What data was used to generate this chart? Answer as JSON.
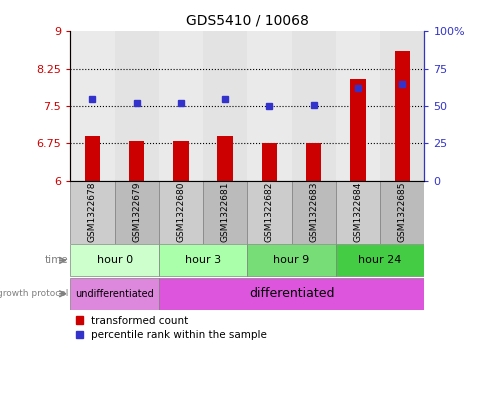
{
  "title": "GDS5410 / 10068",
  "samples": [
    "GSM1322678",
    "GSM1322679",
    "GSM1322680",
    "GSM1322681",
    "GSM1322682",
    "GSM1322683",
    "GSM1322684",
    "GSM1322685"
  ],
  "transformed_count": [
    6.9,
    6.8,
    6.8,
    6.9,
    6.75,
    6.75,
    8.05,
    8.6
  ],
  "percentile_rank": [
    55,
    52,
    52,
    55,
    50,
    51,
    62,
    65
  ],
  "ylim_left": [
    6,
    9
  ],
  "ylim_right": [
    0,
    100
  ],
  "yticks_left": [
    6,
    6.75,
    7.5,
    8.25,
    9
  ],
  "yticks_right": [
    0,
    25,
    50,
    75,
    100
  ],
  "ytick_labels_left": [
    "6",
    "6.75",
    "7.5",
    "8.25",
    "9"
  ],
  "ytick_labels_right": [
    "0",
    "25",
    "50",
    "75",
    "100%"
  ],
  "hlines": [
    6.75,
    7.5,
    8.25
  ],
  "bar_color": "#cc0000",
  "dot_color": "#3333cc",
  "bar_width": 0.35,
  "time_groups": [
    {
      "label": "hour 0",
      "samples": [
        0,
        1
      ],
      "color": "#ccffcc"
    },
    {
      "label": "hour 3",
      "samples": [
        2,
        3
      ],
      "color": "#aaffaa"
    },
    {
      "label": "hour 9",
      "samples": [
        4,
        5
      ],
      "color": "#77dd77"
    },
    {
      "label": "hour 24",
      "samples": [
        6,
        7
      ],
      "color": "#44cc44"
    }
  ],
  "growth_groups": [
    {
      "label": "undifferentiated",
      "samples": [
        0,
        1
      ],
      "color": "#dd88dd"
    },
    {
      "label": "differentiated",
      "samples": [
        2,
        7
      ],
      "color": "#dd55dd"
    }
  ],
  "sample_colors": [
    "#cccccc",
    "#bbbbbb",
    "#cccccc",
    "#bbbbbb",
    "#cccccc",
    "#bbbbbb",
    "#cccccc",
    "#bbbbbb"
  ],
  "legend_items": [
    {
      "label": "transformed count",
      "color": "#cc0000"
    },
    {
      "label": "percentile rank within the sample",
      "color": "#3333cc"
    }
  ],
  "left_axis_color": "#cc0000",
  "right_axis_color": "#3333cc",
  "background_color": "#ffffff"
}
